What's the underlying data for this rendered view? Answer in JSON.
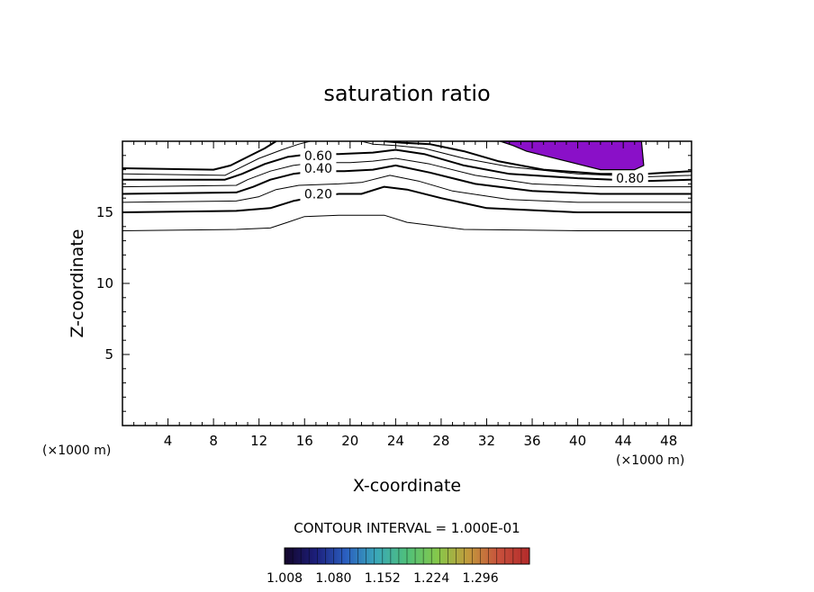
{
  "chart_data": {
    "type": "contour",
    "title": "saturation ratio",
    "xlabel": "X-coordinate",
    "ylabel": "Z-coordinate",
    "x_unit_left": "(×1000 m)",
    "x_unit_right": "(×1000 m)",
    "xlim": [
      0,
      50
    ],
    "ylim": [
      0,
      20
    ],
    "x_ticks": [
      4,
      8,
      12,
      16,
      20,
      24,
      28,
      32,
      36,
      40,
      44,
      48
    ],
    "y_ticks": [
      5,
      10,
      15
    ],
    "contour_interval_text": "CONTOUR INTERVAL = 1.000E-01",
    "contour_labels": [
      {
        "text": "0.60",
        "x": 17.2,
        "y": 19.0
      },
      {
        "text": "0.40",
        "x": 17.2,
        "y": 18.1
      },
      {
        "text": "0.20",
        "x": 17.2,
        "y": 16.3
      },
      {
        "text": "0.80",
        "x": 44.6,
        "y": 17.4
      }
    ],
    "contours": [
      {
        "level": 0.1,
        "points": [
          [
            0,
            13.7
          ],
          [
            10,
            13.8
          ],
          [
            13,
            13.9
          ],
          [
            14.5,
            14.3
          ],
          [
            16,
            14.7
          ],
          [
            19,
            14.8
          ],
          [
            23,
            14.8
          ],
          [
            25,
            14.3
          ],
          [
            30,
            13.8
          ],
          [
            40,
            13.7
          ],
          [
            50,
            13.7
          ]
        ]
      },
      {
        "level": 0.2,
        "points": [
          [
            0,
            15.0
          ],
          [
            10,
            15.1
          ],
          [
            13,
            15.3
          ],
          [
            15,
            15.8
          ],
          [
            17,
            16.1
          ],
          [
            19,
            16.3
          ],
          [
            21,
            16.3
          ],
          [
            23,
            16.8
          ],
          [
            25,
            16.6
          ],
          [
            28,
            16.0
          ],
          [
            32,
            15.3
          ],
          [
            40,
            15.0
          ],
          [
            50,
            15.0
          ]
        ]
      },
      {
        "level": 0.3,
        "points": [
          [
            0,
            15.7
          ],
          [
            10,
            15.8
          ],
          [
            12,
            16.1
          ],
          [
            13.5,
            16.6
          ],
          [
            15.5,
            16.9
          ],
          [
            19,
            17.0
          ],
          [
            21,
            17.1
          ],
          [
            23.5,
            17.6
          ],
          [
            26,
            17.2
          ],
          [
            29,
            16.5
          ],
          [
            34,
            15.9
          ],
          [
            40,
            15.7
          ],
          [
            50,
            15.7
          ]
        ]
      },
      {
        "level": 0.4,
        "points": [
          [
            0,
            16.3
          ],
          [
            10,
            16.4
          ],
          [
            11.5,
            16.8
          ],
          [
            13,
            17.3
          ],
          [
            15,
            17.7
          ],
          [
            17,
            17.9
          ],
          [
            19.5,
            17.9
          ],
          [
            22,
            18.0
          ],
          [
            24,
            18.3
          ],
          [
            27,
            17.8
          ],
          [
            31,
            17.0
          ],
          [
            36,
            16.5
          ],
          [
            42,
            16.3
          ],
          [
            50,
            16.3
          ]
        ]
      },
      {
        "level": 0.5,
        "points": [
          [
            0,
            16.8
          ],
          [
            10,
            16.9
          ],
          [
            11,
            17.3
          ],
          [
            13,
            17.9
          ],
          [
            15,
            18.3
          ],
          [
            17,
            18.5
          ],
          [
            20,
            18.5
          ],
          [
            22,
            18.6
          ],
          [
            24,
            18.8
          ],
          [
            27,
            18.4
          ],
          [
            31,
            17.6
          ],
          [
            36,
            17.0
          ],
          [
            42,
            16.8
          ],
          [
            50,
            16.8
          ]
        ]
      },
      {
        "level": 0.6,
        "points": [
          [
            0,
            17.3
          ],
          [
            9,
            17.3
          ],
          [
            10.5,
            17.7
          ],
          [
            12.5,
            18.4
          ],
          [
            14.5,
            18.9
          ],
          [
            16.5,
            19.1
          ],
          [
            19,
            19.1
          ],
          [
            22,
            19.2
          ],
          [
            24,
            19.4
          ],
          [
            26.5,
            19.1
          ],
          [
            30,
            18.3
          ],
          [
            34,
            17.7
          ],
          [
            40,
            17.4
          ],
          [
            46,
            17.2
          ],
          [
            50,
            17.3
          ]
        ]
      },
      {
        "level": 0.7,
        "points": [
          [
            0,
            17.7
          ],
          [
            9,
            17.6
          ],
          [
            10,
            18.0
          ],
          [
            12,
            18.8
          ],
          [
            14,
            19.4
          ],
          [
            15.5,
            19.8
          ],
          [
            16.5,
            20.0
          ]
        ]
      },
      {
        "level": 0.7,
        "points": [
          [
            21,
            20.0
          ],
          [
            22,
            19.8
          ],
          [
            24,
            19.7
          ],
          [
            26.5,
            19.5
          ],
          [
            30,
            18.8
          ],
          [
            34,
            18.2
          ],
          [
            40,
            17.7
          ],
          [
            46,
            17.5
          ],
          [
            50,
            17.6
          ]
        ]
      },
      {
        "level": 0.8,
        "points": [
          [
            0,
            18.1
          ],
          [
            8,
            18.0
          ],
          [
            9.5,
            18.3
          ],
          [
            11,
            18.9
          ],
          [
            12.5,
            19.5
          ],
          [
            13.5,
            20.0
          ]
        ]
      },
      {
        "level": 0.8,
        "points": [
          [
            23,
            20.0
          ],
          [
            24.5,
            19.9
          ],
          [
            27,
            19.8
          ],
          [
            30,
            19.3
          ],
          [
            33,
            18.6
          ],
          [
            37,
            18.0
          ],
          [
            42,
            17.7
          ],
          [
            46,
            17.7
          ],
          [
            50,
            17.9
          ]
        ]
      }
    ],
    "filled_region": {
      "note": "values above 1.0",
      "color": "#8a10c8",
      "outline": [
        [
          33.2,
          20.0
        ],
        [
          45.6,
          20.0
        ],
        [
          45.8,
          18.3
        ],
        [
          45.0,
          18.0
        ],
        [
          42,
          18.0
        ],
        [
          40,
          18.4
        ],
        [
          37.5,
          18.9
        ],
        [
          35.5,
          19.3
        ],
        [
          34.3,
          19.7
        ]
      ]
    },
    "colorbar": {
      "tick_labels": [
        "1.008",
        "1.080",
        "1.152",
        "1.224",
        "1.296"
      ],
      "min": 1.008,
      "max": 1.368,
      "stops": [
        "#14062a",
        "#1c1e7a",
        "#2b5fc0",
        "#3aa8b8",
        "#4fc07a",
        "#86c84a",
        "#c29a3c",
        "#c8503c",
        "#b22a2a"
      ]
    }
  }
}
